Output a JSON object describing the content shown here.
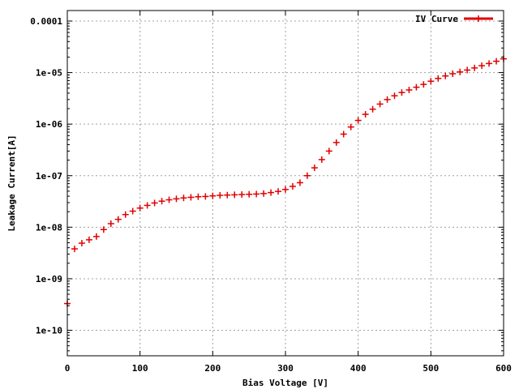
{
  "chart_data": {
    "type": "scatter",
    "title": "",
    "xlabel": "Bias Voltage [V]",
    "ylabel": "Leakage Current[A]",
    "x_scale": "linear",
    "y_scale": "log",
    "xlim": [
      0,
      600
    ],
    "ylim": [
      3.2e-11,
      0.00016
    ],
    "x_ticks": [
      0,
      100,
      200,
      300,
      400,
      500,
      600
    ],
    "x_tick_labels": [
      "0",
      "100",
      "200",
      "300",
      "400",
      "500",
      "600"
    ],
    "y_ticks": [
      1e-10,
      1e-09,
      1e-08,
      1e-07,
      1e-06,
      1e-05,
      0.0001
    ],
    "y_tick_labels": [
      "1e-10",
      "1e-09",
      "1e-08",
      "1e-07",
      "1e-06",
      "1e-05",
      "0.0001"
    ],
    "grid": true,
    "legend_position": "top-right",
    "series": [
      {
        "name": "IV Curve",
        "color": "#e00000",
        "marker": "plus",
        "x": [
          0,
          10,
          20,
          30,
          40,
          50,
          60,
          70,
          80,
          90,
          100,
          110,
          120,
          130,
          140,
          150,
          160,
          170,
          180,
          190,
          200,
          210,
          220,
          230,
          240,
          250,
          260,
          270,
          280,
          290,
          300,
          310,
          320,
          330,
          340,
          350,
          360,
          370,
          380,
          390,
          400,
          410,
          420,
          430,
          440,
          450,
          460,
          470,
          480,
          490,
          500,
          510,
          520,
          530,
          540,
          550,
          560,
          570,
          580,
          590,
          600
        ],
        "y": [
          3.3e-10,
          3.8e-09,
          4.9e-09,
          5.7e-09,
          6.6e-09,
          9e-09,
          1.17e-08,
          1.42e-08,
          1.76e-08,
          2.05e-08,
          2.35e-08,
          2.65e-08,
          2.95e-08,
          3.2e-08,
          3.4e-08,
          3.55e-08,
          3.7e-08,
          3.8e-08,
          3.9e-08,
          3.95e-08,
          4.05e-08,
          4.15e-08,
          4.2e-08,
          4.25e-08,
          4.3e-08,
          4.35e-08,
          4.4e-08,
          4.5e-08,
          4.7e-08,
          4.95e-08,
          5.4e-08,
          6.2e-08,
          7.3e-08,
          1e-07,
          1.42e-07,
          2.05e-07,
          3e-07,
          4.4e-07,
          6.4e-07,
          8.8e-07,
          1.18e-06,
          1.55e-06,
          1.95e-06,
          2.45e-06,
          3e-06,
          3.55e-06,
          4.1e-06,
          4.6e-06,
          5.2e-06,
          5.9e-06,
          6.8e-06,
          7.7e-06,
          8.6e-06,
          9.5e-06,
          1.03e-05,
          1.12e-05,
          1.23e-05,
          1.36e-05,
          1.5e-05,
          1.66e-05,
          1.85e-05
        ]
      }
    ]
  }
}
